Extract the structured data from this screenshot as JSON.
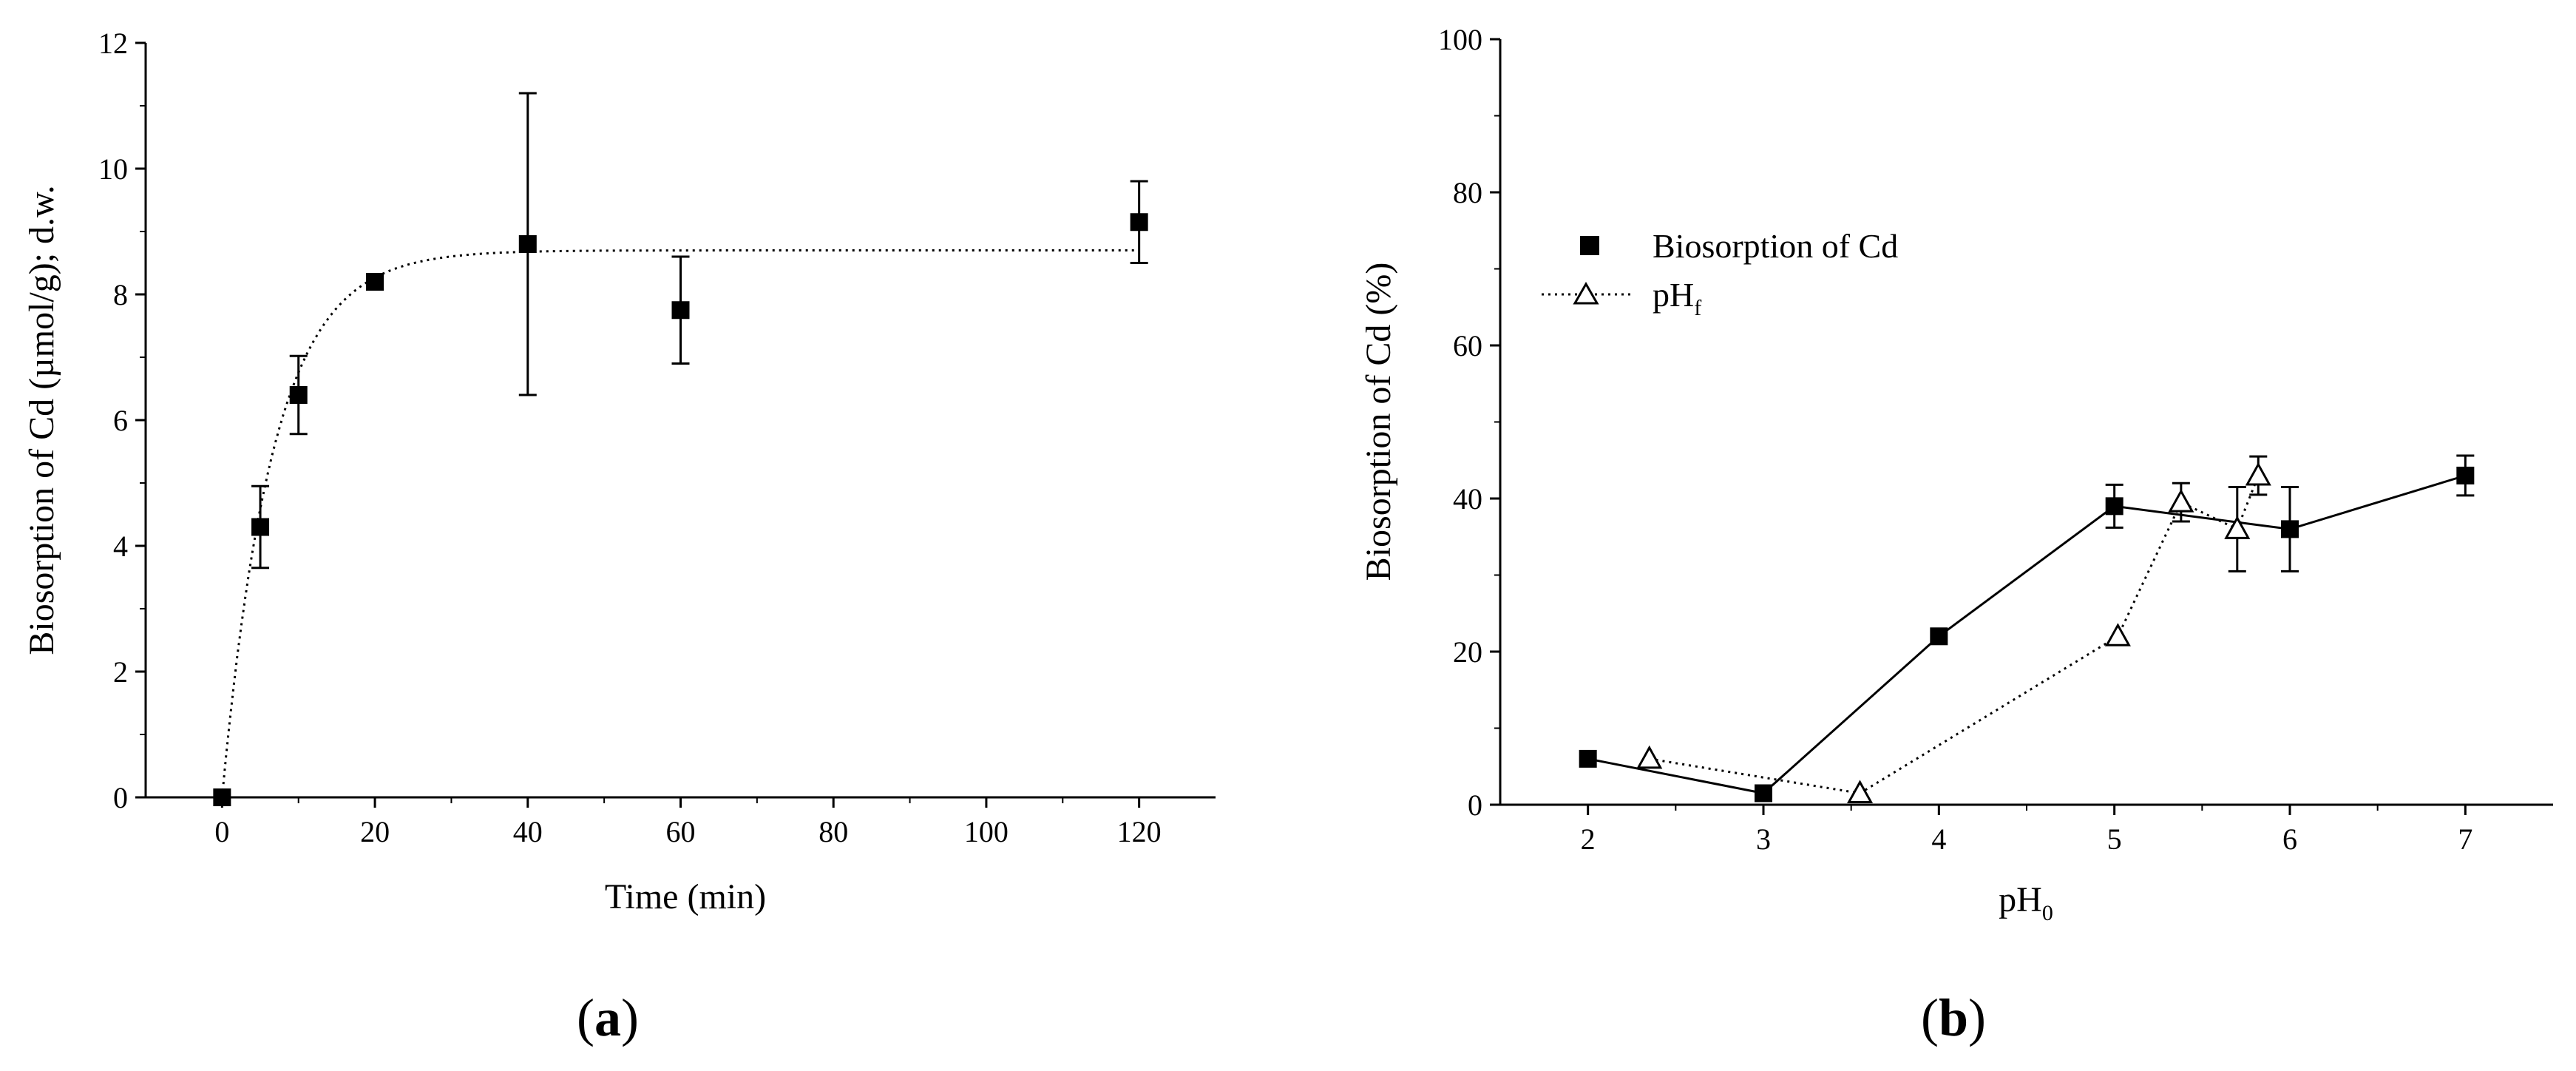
{
  "chart_data": [
    {
      "type": "scatter",
      "panel_label": "(a)",
      "xlabel": "Time (min)",
      "ylabel": "Biosorption of Cd (µmol/g); d.w.",
      "xlim": [
        -10,
        130
      ],
      "ylim": [
        0,
        12
      ],
      "x_ticks": [
        0,
        20,
        40,
        60,
        80,
        100,
        120
      ],
      "y_ticks": [
        0,
        2,
        4,
        6,
        8,
        10,
        12
      ],
      "grid": false,
      "series": [
        {
          "marker": "filled-square",
          "x": [
            0,
            5,
            10,
            20,
            40,
            60,
            120
          ],
          "y": [
            0,
            4.3,
            6.4,
            8.2,
            8.8,
            7.75,
            9.15
          ],
          "error": [
            0,
            0.65,
            0.62,
            0.12,
            2.4,
            0.85,
            0.65
          ]
        }
      ],
      "fit": {
        "style": "dotted",
        "model": "exponential saturation",
        "plateau": 8.7,
        "rate": 0.15,
        "x_range": [
          0,
          120
        ]
      }
    },
    {
      "type": "line",
      "panel_label": "(b)",
      "xlabel": "pH",
      "xlabel_sub": "0",
      "ylabel": "Biosorption of Cd (%)",
      "xlim": [
        1.5,
        7.5
      ],
      "ylim": [
        0,
        100
      ],
      "x_ticks": [
        2,
        3,
        4,
        5,
        6,
        7
      ],
      "y_ticks": [
        0,
        20,
        40,
        60,
        80,
        100
      ],
      "grid": false,
      "legend_position": "upper-left",
      "series": [
        {
          "name": "Biosorption of Cd",
          "line": "solid",
          "marker": "filled-square",
          "x": [
            2,
            3,
            4,
            5,
            6,
            7
          ],
          "y": [
            6,
            1.5,
            22,
            39,
            36,
            43
          ],
          "error": [
            0,
            0,
            0,
            2.8,
            5.5,
            2.6
          ]
        },
        {
          "name": "pH",
          "name_sub": "f",
          "line": "dotted",
          "marker": "open-triangle",
          "x": [
            2.35,
            3.55,
            5.02,
            5.38,
            5.7,
            5.82
          ],
          "y": [
            6,
            1.5,
            22,
            39.5,
            36,
            43
          ],
          "error": [
            0,
            0,
            0,
            2.5,
            5.5,
            2.5
          ]
        }
      ]
    }
  ]
}
